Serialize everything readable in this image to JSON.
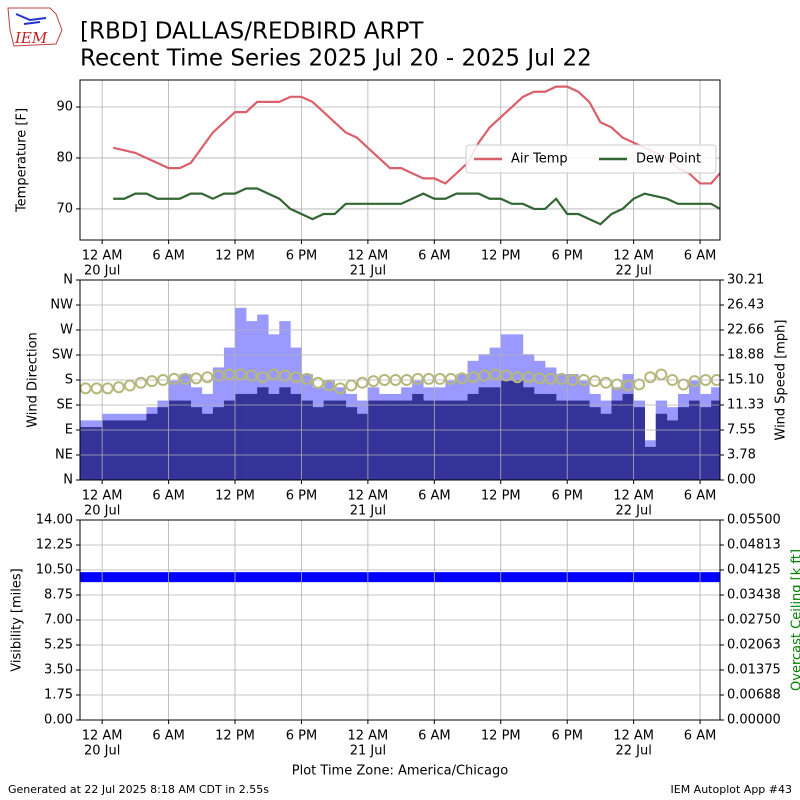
{
  "header": {
    "title": [
      "[RBD] DALLAS/REDBIRD ARPT",
      "Recent Time Series 2025 Jul 20 - 2025 Jul 22"
    ],
    "logo": "IEM"
  },
  "xlabel": "Plot Time Zone: America/Chicago",
  "footer": {
    "left": "Generated at 22 Jul 2025 8:18 AM CDT in 2.55s",
    "right": "IEM Autoplot App #43"
  },
  "chart_data": [
    {
      "type": "line",
      "ylabel": "Temperature [F]",
      "grid": true,
      "legend": "center right",
      "xlim": [
        -2,
        55.8
      ],
      "xticks": [
        {
          "value": 0,
          "label": "12 AM",
          "date": "20 Jul"
        },
        {
          "value": 6,
          "label": "6 AM"
        },
        {
          "value": 12,
          "label": "12 PM"
        },
        {
          "value": 18,
          "label": "6 PM"
        },
        {
          "value": 24,
          "label": "12 AM",
          "date": "21 Jul"
        },
        {
          "value": 30,
          "label": "6 AM"
        },
        {
          "value": 36,
          "label": "12 PM"
        },
        {
          "value": 42,
          "label": "6 PM"
        },
        {
          "value": 48,
          "label": "12 AM",
          "date": "22 Jul"
        },
        {
          "value": 54,
          "label": "6 AM"
        }
      ],
      "ylim": [
        63.9,
        95.3
      ],
      "yticks": [
        70,
        80,
        90
      ],
      "x": [
        1,
        2,
        3,
        4,
        5,
        6,
        7,
        8,
        9,
        10,
        11,
        12,
        13,
        14,
        15,
        16,
        17,
        18,
        19,
        20,
        21,
        22,
        23,
        24,
        25,
        26,
        27,
        28,
        29,
        30,
        31,
        32,
        33,
        34,
        35,
        36,
        37,
        38,
        39,
        40,
        41,
        42,
        43,
        44,
        45,
        46,
        47,
        48,
        49,
        50,
        51,
        52,
        53,
        54,
        55,
        55.8
      ],
      "series": [
        {
          "name": "Air Temp",
          "color": "#d9606a",
          "values": [
            82,
            81.5,
            81,
            80,
            79,
            78,
            78,
            79,
            82,
            85,
            87,
            89,
            89,
            91,
            91,
            91,
            92,
            92,
            91,
            89,
            87,
            85,
            84,
            82,
            80,
            78,
            78,
            77,
            76,
            76,
            75,
            77,
            79,
            83,
            86,
            88,
            90,
            92,
            93,
            93,
            94,
            94,
            93,
            91,
            87,
            86,
            84,
            83,
            82,
            81,
            80,
            78,
            77,
            75,
            75,
            77
          ]
        },
        {
          "name": "Dew Point",
          "color": "#336633",
          "values": [
            72,
            72,
            73,
            73,
            72,
            72,
            72,
            73,
            73,
            72,
            73,
            73,
            74,
            74,
            73,
            72,
            70,
            69,
            68,
            69,
            69,
            71,
            71,
            71,
            71,
            71,
            71,
            72,
            73,
            72,
            72,
            73,
            73,
            73,
            72,
            72,
            71,
            71,
            70,
            70,
            72,
            69,
            69,
            68,
            67,
            69,
            70,
            72,
            73,
            72.5,
            72,
            71,
            71,
            71,
            71,
            70
          ]
        }
      ]
    },
    {
      "type": "wind",
      "ylabel": "Wind Direction",
      "y2label": "Wind Speed [mph]",
      "grid": true,
      "xlim": [
        -2,
        55.8
      ],
      "xticks": [
        {
          "value": 0,
          "label": "12 AM",
          "date": "20 Jul"
        },
        {
          "value": 6,
          "label": "6 AM"
        },
        {
          "value": 12,
          "label": "12 PM"
        },
        {
          "value": 18,
          "label": "6 PM"
        },
        {
          "value": 24,
          "label": "12 AM",
          "date": "21 Jul"
        },
        {
          "value": 30,
          "label": "6 AM"
        },
        {
          "value": 36,
          "label": "12 PM"
        },
        {
          "value": 42,
          "label": "6 PM"
        },
        {
          "value": 48,
          "label": "12 AM",
          "date": "22 Jul"
        },
        {
          "value": 54,
          "label": "6 AM"
        }
      ],
      "ylim": [
        0,
        360
      ],
      "yticks": [
        {
          "value": 0,
          "label": "N"
        },
        {
          "value": 45,
          "label": "NE"
        },
        {
          "value": 90,
          "label": "E"
        },
        {
          "value": 135,
          "label": "SE"
        },
        {
          "value": 180,
          "label": "S"
        },
        {
          "value": 225,
          "label": "SW"
        },
        {
          "value": 270,
          "label": "W"
        },
        {
          "value": 315,
          "label": "NW"
        },
        {
          "value": 360,
          "label": "N"
        }
      ],
      "y2lim": [
        0,
        30.21
      ],
      "y2ticks": [
        {
          "value": 0,
          "label": "0.00"
        },
        {
          "value": 3.7763,
          "label": "3.78"
        },
        {
          "value": 7.5525,
          "label": "7.55"
        },
        {
          "value": 11.3288,
          "label": "11.33"
        },
        {
          "value": 15.105,
          "label": "15.10"
        },
        {
          "value": 18.8813,
          "label": "18.88"
        },
        {
          "value": 22.6575,
          "label": "22.66"
        },
        {
          "value": 26.4338,
          "label": "26.43"
        },
        30.21
      ],
      "x": [
        -2,
        -1,
        0,
        1,
        2,
        3,
        4,
        5,
        6,
        7,
        8,
        9,
        10,
        11,
        12,
        13,
        14,
        15,
        16,
        17,
        18,
        19,
        20,
        21,
        22,
        23,
        24,
        25,
        26,
        27,
        28,
        29,
        30,
        31,
        32,
        33,
        34,
        35,
        36,
        37,
        38,
        39,
        40,
        41,
        42,
        43,
        44,
        45,
        46,
        47,
        48,
        49,
        50,
        51,
        52,
        53,
        54,
        55
      ],
      "speed": {
        "color": "#333399",
        "axis": "y2",
        "values": [
          8,
          8,
          9,
          9,
          9,
          9,
          10,
          11,
          12,
          12,
          11,
          10,
          11,
          12,
          13,
          13,
          14,
          13,
          14,
          13,
          12,
          11,
          12,
          12,
          11,
          10,
          12,
          12,
          12,
          12,
          13,
          12,
          12,
          12,
          12,
          13,
          14,
          14,
          15,
          15,
          14,
          13,
          13,
          12,
          12,
          12,
          11,
          10,
          12,
          13,
          11,
          5,
          10,
          9,
          11,
          12,
          11,
          12
        ]
      },
      "gust": {
        "color": "#9999ff",
        "axis": "y2",
        "values": [
          9,
          9,
          10,
          10,
          10,
          10,
          11,
          12,
          15,
          16,
          14,
          13,
          17,
          20,
          26,
          24,
          25,
          22,
          24,
          20,
          16,
          14,
          15,
          14,
          13,
          12,
          14,
          13,
          13,
          14,
          15,
          14,
          14,
          15,
          16,
          18,
          19,
          20,
          22,
          22,
          19,
          18,
          17,
          16,
          16,
          15,
          13,
          12,
          14,
          16,
          12,
          6,
          12,
          11,
          13,
          15,
          13,
          14
        ]
      },
      "direction": {
        "color": "#b5b87a",
        "values": [
          165,
          165,
          165,
          167,
          170,
          175,
          178,
          180,
          182,
          182,
          183,
          185,
          188,
          190,
          190,
          188,
          185,
          190,
          188,
          185,
          182,
          175,
          170,
          165,
          170,
          175,
          178,
          180,
          180,
          180,
          182,
          182,
          182,
          182,
          183,
          185,
          188,
          190,
          188,
          185,
          185,
          183,
          182,
          182,
          180,
          180,
          178,
          175,
          172,
          170,
          172,
          185,
          190,
          180,
          172,
          178,
          180,
          180
        ]
      }
    },
    {
      "type": "scatter",
      "ylabel": "Visibility [miles]",
      "y2label": "Overcast Ceiling [k ft]",
      "y2label_color": "#008000",
      "grid": true,
      "xlim": [
        -2,
        55.8
      ],
      "xticks": [
        {
          "value": 0,
          "label": "12 AM",
          "date": "20 Jul"
        },
        {
          "value": 6,
          "label": "6 AM"
        },
        {
          "value": 12,
          "label": "12 PM"
        },
        {
          "value": 18,
          "label": "6 PM"
        },
        {
          "value": 24,
          "label": "12 AM",
          "date": "21 Jul"
        },
        {
          "value": 30,
          "label": "6 AM"
        },
        {
          "value": 36,
          "label": "12 PM"
        },
        {
          "value": 42,
          "label": "6 PM"
        },
        {
          "value": 48,
          "label": "12 AM",
          "date": "22 Jul"
        },
        {
          "value": 54,
          "label": "6 AM"
        }
      ],
      "ylim": [
        0,
        14
      ],
      "yticks": [
        {
          "value": 0,
          "label": "0.00"
        },
        1.75,
        {
          "value": 3.5,
          "label": "3.50"
        },
        5.25,
        {
          "value": 7,
          "label": "7.00"
        },
        8.75,
        {
          "value": 10.5,
          "label": "10.50"
        },
        12.25,
        {
          "value": 14,
          "label": "14.00"
        }
      ],
      "y2lim": [
        0,
        0.055
      ],
      "y2ticks": [
        {
          "value": 0,
          "label": "0.00000"
        },
        {
          "value": 0.006875,
          "label": "0.00688"
        },
        0.01375,
        {
          "value": 0.020625,
          "label": "0.02063"
        },
        {
          "value": 0.0275,
          "label": "0.02750"
        },
        {
          "value": 0.034375,
          "label": "0.03438"
        },
        0.04125,
        {
          "value": 0.048125,
          "label": "0.04813"
        },
        {
          "value": 0.055,
          "label": "0.05500"
        }
      ],
      "x": [
        -2,
        -1,
        0,
        1,
        2,
        3,
        4,
        5,
        6,
        7,
        8,
        9,
        10,
        11,
        12,
        13,
        14,
        15,
        16,
        17,
        18,
        19,
        20,
        21,
        22,
        23,
        24,
        25,
        26,
        27,
        28,
        29,
        30,
        31,
        32,
        33,
        34,
        35,
        36,
        37,
        38,
        39,
        40,
        41,
        42,
        43,
        44,
        45,
        46,
        47,
        48,
        49,
        50,
        51,
        52,
        53,
        54,
        55
      ],
      "color": "#0000ff",
      "values": [
        10,
        10,
        10,
        10,
        10,
        10,
        10,
        10,
        10,
        10,
        10,
        10,
        10,
        10,
        10,
        10,
        10,
        10,
        10,
        10,
        10,
        10,
        10,
        10,
        10,
        10,
        10,
        10,
        10,
        10,
        10,
        10,
        10,
        10,
        10,
        10,
        10,
        10,
        10,
        10,
        10,
        10,
        10,
        10,
        10,
        10,
        10,
        10,
        10,
        10,
        10,
        10,
        10,
        10,
        10,
        10,
        10,
        10
      ]
    }
  ]
}
